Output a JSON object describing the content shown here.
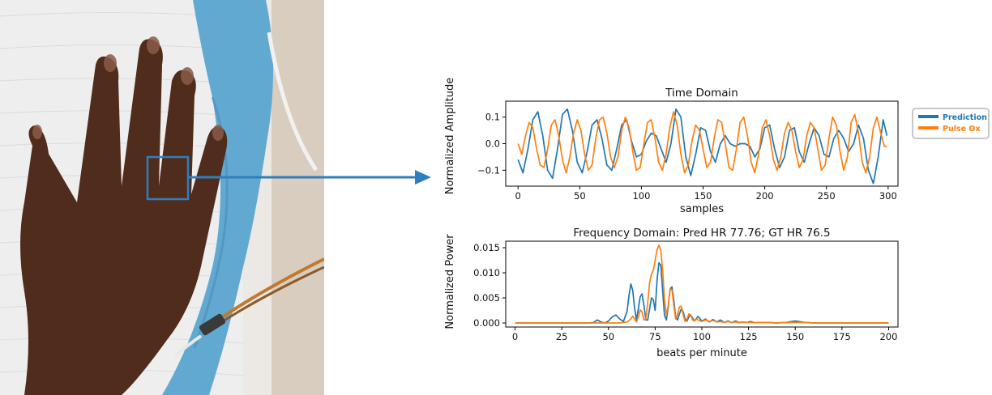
{
  "colors": {
    "prediction": "#1f77b4",
    "pulse_ox": "#ff7f0e",
    "roi_box": "#2f7fbf",
    "arrow": "#2f7fbf"
  },
  "legend": {
    "items": [
      "Prediction",
      "Pulse Ox"
    ]
  },
  "chart_data": [
    {
      "type": "line",
      "title": "Time Domain",
      "xlabel": "samples",
      "ylabel": "Normalized Amplitude",
      "xlim": [
        -10,
        308
      ],
      "ylim": [
        -0.16,
        0.16
      ],
      "xticks": [
        0,
        50,
        100,
        150,
        200,
        250,
        300
      ],
      "yticks": [
        -0.1,
        0.0,
        0.1
      ],
      "ytick_labels": [
        "−0.1",
        "0.0",
        "0.1"
      ],
      "grid": false,
      "legend_position": "outside-right",
      "series": [
        {
          "name": "Prediction",
          "x": [
            0,
            4,
            8,
            12,
            16,
            20,
            24,
            28,
            32,
            36,
            40,
            44,
            48,
            52,
            56,
            60,
            64,
            68,
            72,
            76,
            80,
            84,
            88,
            92,
            96,
            100,
            104,
            108,
            112,
            116,
            120,
            124,
            128,
            132,
            136,
            140,
            144,
            148,
            152,
            156,
            160,
            164,
            168,
            172,
            176,
            180,
            184,
            188,
            192,
            196,
            200,
            204,
            208,
            212,
            216,
            220,
            224,
            228,
            232,
            236,
            240,
            244,
            248,
            252,
            256,
            260,
            264,
            268,
            272,
            276,
            280,
            284,
            288,
            292,
            296,
            299
          ],
          "y": [
            -0.06,
            -0.11,
            -0.02,
            0.09,
            0.12,
            0.03,
            -0.1,
            -0.13,
            -0.02,
            0.11,
            0.13,
            0.05,
            -0.07,
            -0.11,
            -0.03,
            0.07,
            0.09,
            0.02,
            -0.08,
            -0.1,
            -0.02,
            0.07,
            0.09,
            0.01,
            -0.05,
            -0.04,
            0.01,
            0.04,
            0.03,
            -0.02,
            -0.07,
            0.0,
            0.13,
            0.1,
            -0.05,
            -0.12,
            -0.04,
            0.06,
            0.05,
            -0.03,
            -0.07,
            0.0,
            0.03,
            0.0,
            -0.01,
            0.0,
            0.0,
            -0.01,
            -0.05,
            -0.02,
            0.06,
            0.07,
            -0.02,
            -0.09,
            -0.05,
            0.05,
            0.06,
            -0.03,
            -0.07,
            0.0,
            0.06,
            0.03,
            -0.04,
            -0.05,
            0.02,
            0.05,
            0.02,
            -0.03,
            0.0,
            0.07,
            0.02,
            -0.1,
            -0.15,
            -0.05,
            0.09,
            0.03
          ]
        },
        {
          "name": "Pulse Ox",
          "x": [
            0,
            3,
            6,
            9,
            12,
            15,
            18,
            21,
            24,
            27,
            30,
            33,
            36,
            39,
            42,
            45,
            48,
            51,
            54,
            57,
            60,
            63,
            66,
            69,
            72,
            75,
            78,
            81,
            84,
            87,
            90,
            93,
            96,
            99,
            102,
            105,
            108,
            111,
            114,
            117,
            120,
            123,
            126,
            129,
            132,
            135,
            138,
            141,
            144,
            147,
            150,
            153,
            156,
            159,
            162,
            165,
            168,
            171,
            174,
            177,
            180,
            183,
            186,
            189,
            192,
            195,
            198,
            201,
            204,
            207,
            210,
            213,
            216,
            219,
            222,
            225,
            228,
            231,
            234,
            237,
            240,
            243,
            246,
            249,
            252,
            255,
            258,
            261,
            264,
            267,
            270,
            273,
            276,
            279,
            282,
            285,
            288,
            291,
            294,
            297,
            299
          ],
          "y": [
            0.0,
            -0.04,
            0.03,
            0.08,
            0.06,
            -0.02,
            -0.08,
            -0.09,
            -0.02,
            0.07,
            0.09,
            0.03,
            -0.06,
            -0.11,
            -0.05,
            0.04,
            0.09,
            0.05,
            -0.04,
            -0.1,
            -0.08,
            0.02,
            0.09,
            0.1,
            0.04,
            -0.05,
            -0.09,
            -0.05,
            0.05,
            0.1,
            0.06,
            -0.03,
            -0.1,
            -0.09,
            0.0,
            0.08,
            0.09,
            0.02,
            -0.07,
            -0.1,
            -0.04,
            0.06,
            0.12,
            0.07,
            -0.04,
            -0.11,
            -0.08,
            0.01,
            0.07,
            0.05,
            -0.02,
            -0.09,
            -0.07,
            0.02,
            0.09,
            0.08,
            0.0,
            -0.09,
            -0.1,
            -0.02,
            0.08,
            0.1,
            0.03,
            -0.07,
            -0.11,
            -0.04,
            0.06,
            0.09,
            0.03,
            -0.06,
            -0.1,
            -0.05,
            0.04,
            0.08,
            0.05,
            -0.03,
            -0.09,
            -0.06,
            0.03,
            0.08,
            0.06,
            -0.02,
            -0.1,
            -0.08,
            0.02,
            0.1,
            0.07,
            -0.03,
            -0.1,
            -0.05,
            0.08,
            0.11,
            0.04,
            -0.07,
            -0.11,
            -0.05,
            0.06,
            0.1,
            0.04,
            -0.01,
            -0.01
          ]
        }
      ]
    },
    {
      "type": "line",
      "title": "Frequency Domain: Pred HR 77.76; GT HR 76.5",
      "xlabel": "beats per minute",
      "ylabel": "Normalized Power",
      "xlim": [
        -5,
        205
      ],
      "ylim": [
        -0.0008,
        0.0163
      ],
      "xticks": [
        0,
        25,
        50,
        75,
        100,
        125,
        150,
        175,
        200
      ],
      "yticks": [
        0.0,
        0.005,
        0.01,
        0.015
      ],
      "ytick_labels": [
        "0.000",
        "0.005",
        "0.010",
        "0.015"
      ],
      "grid": false,
      "series": [
        {
          "name": "Prediction",
          "x": [
            0,
            40,
            42,
            44,
            46,
            48,
            50,
            52,
            54,
            56,
            58,
            60,
            61,
            62,
            63,
            64,
            65,
            66,
            67,
            68,
            69,
            70,
            71,
            72,
            73,
            74,
            75,
            76,
            77,
            78,
            79,
            80,
            81,
            82,
            83,
            84,
            85,
            86,
            87,
            88,
            89,
            90,
            91,
            92,
            93,
            94,
            95,
            96,
            97,
            98,
            100,
            102,
            104,
            106,
            108,
            110,
            112,
            114,
            116,
            118,
            120,
            122,
            124,
            126,
            128,
            130,
            135,
            140,
            145,
            148,
            150,
            152,
            155,
            160,
            200
          ],
          "y": [
            0,
            0,
            0.0001,
            0.0006,
            0.0002,
            0,
            0.0004,
            0.0012,
            0.0016,
            0.0008,
            0.0003,
            0.0024,
            0.0055,
            0.0078,
            0.0065,
            0.003,
            0.0006,
            0.0028,
            0.0052,
            0.0058,
            0.0035,
            0.0006,
            0.0006,
            0.0028,
            0.005,
            0.0046,
            0.0025,
            0.0085,
            0.012,
            0.0115,
            0.0065,
            0.0015,
            0.0006,
            0.0032,
            0.0068,
            0.0072,
            0.0045,
            0.0012,
            0.0006,
            0.0018,
            0.0028,
            0.0022,
            0.0008,
            0.0004,
            0.0012,
            0.0016,
            0.001,
            0.0004,
            0.0009,
            0.0013,
            0.0004,
            0.0008,
            0.0002,
            0.0007,
            0.0002,
            0.0006,
            0.0001,
            0.0004,
            0.0001,
            0.0004,
            0.0001,
            0.0002,
            0.0001,
            0.0003,
            0.0001,
            0.0001,
            0.0001,
            0,
            0.0001,
            0.0003,
            0.0004,
            0.0003,
            0.0001,
            0,
            0
          ]
        },
        {
          "name": "Pulse Ox",
          "x": [
            0,
            56,
            58,
            60,
            62,
            63,
            64,
            65,
            66,
            67,
            68,
            69,
            70,
            71,
            72,
            73,
            74,
            75,
            76,
            77,
            78,
            79,
            80,
            81,
            82,
            83,
            84,
            85,
            86,
            87,
            88,
            89,
            90,
            91,
            92,
            93,
            94,
            95,
            96,
            97,
            98,
            100,
            102,
            104,
            106,
            108,
            110,
            112,
            114,
            116,
            118,
            120,
            122,
            124,
            126,
            128,
            130,
            135,
            140,
            145,
            150,
            155,
            160,
            200
          ],
          "y": [
            0,
            0,
            0.0001,
            0.0002,
            0.0008,
            0.0014,
            0.0008,
            0.0002,
            0.0012,
            0.0026,
            0.0022,
            0.0006,
            0.0008,
            0.004,
            0.008,
            0.0098,
            0.0105,
            0.0125,
            0.0146,
            0.0155,
            0.0145,
            0.0105,
            0.0048,
            0.0015,
            0.0035,
            0.0068,
            0.0066,
            0.0035,
            0.0008,
            0.0016,
            0.0032,
            0.0034,
            0.0016,
            0.0003,
            0.0008,
            0.0018,
            0.0016,
            0.0006,
            0.0004,
            0.0008,
            0.0006,
            0.0003,
            0.0006,
            0.0003,
            0.0005,
            0.0002,
            0.0003,
            0.0001,
            0.0003,
            0.0001,
            0.0002,
            0.0001,
            0.0002,
            0.0001,
            0.0001,
            0.0001,
            0.0001,
            0.0001,
            0,
            0.0001,
            0.0001,
            0.0001,
            0,
            0
          ]
        }
      ]
    }
  ]
}
